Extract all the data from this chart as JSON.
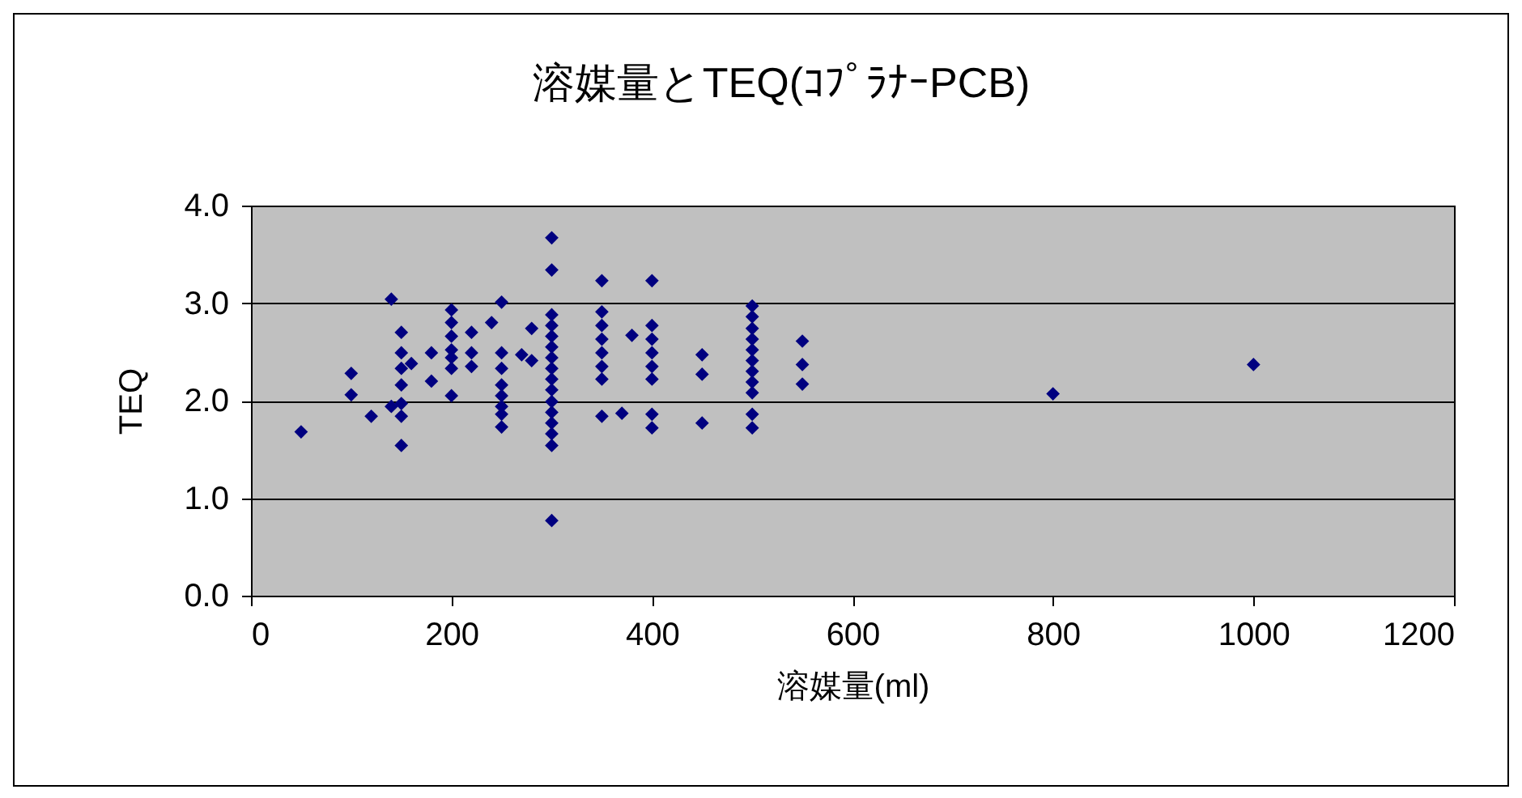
{
  "chart_data": {
    "type": "scatter",
    "title": "溶媒量とTEQ(ｺﾌﾟﾗﾅｰPCB)",
    "xlabel": "溶媒量(ml)",
    "ylabel": "TEQ",
    "x": [
      50,
      100,
      100,
      120,
      140,
      140,
      150,
      150,
      150,
      150,
      150,
      150,
      150,
      160,
      180,
      180,
      200,
      200,
      200,
      200,
      200,
      200,
      200,
      220,
      220,
      220,
      240,
      250,
      250,
      250,
      250,
      250,
      250,
      250,
      250,
      270,
      280,
      280,
      300,
      300,
      300,
      300,
      300,
      300,
      300,
      300,
      300,
      300,
      300,
      300,
      300,
      300,
      300,
      300,
      350,
      350,
      350,
      350,
      350,
      350,
      350,
      350,
      370,
      380,
      400,
      400,
      400,
      400,
      400,
      400,
      400,
      400,
      450,
      450,
      450,
      500,
      500,
      500,
      500,
      500,
      500,
      500,
      500,
      500,
      500,
      500,
      550,
      550,
      550,
      800,
      1000
    ],
    "values": [
      1.68,
      2.28,
      2.06,
      1.84,
      3.04,
      1.94,
      2.7,
      2.49,
      2.33,
      2.16,
      1.97,
      1.84,
      1.54,
      2.38,
      2.49,
      2.2,
      2.93,
      2.8,
      2.66,
      2.52,
      2.44,
      2.33,
      2.05,
      2.7,
      2.49,
      2.35,
      2.8,
      3.01,
      2.49,
      2.33,
      2.16,
      2.05,
      1.94,
      1.86,
      1.73,
      2.47,
      2.74,
      2.41,
      3.67,
      3.34,
      2.88,
      2.77,
      2.66,
      2.55,
      2.44,
      2.33,
      2.22,
      2.11,
      1.99,
      1.88,
      1.77,
      1.66,
      1.54,
      0.77,
      3.23,
      2.91,
      2.77,
      2.63,
      2.49,
      2.35,
      2.22,
      1.84,
      1.87,
      2.67,
      3.23,
      2.77,
      2.63,
      2.49,
      2.35,
      2.22,
      1.86,
      1.72,
      2.47,
      2.27,
      1.77,
      2.97,
      2.86,
      2.74,
      2.63,
      2.52,
      2.41,
      2.3,
      2.19,
      2.08,
      1.86,
      1.72,
      2.61,
      2.37,
      2.17,
      2.07,
      2.37
    ],
    "color": "#000080",
    "marker": "diamond",
    "xlim": [
      0,
      1200
    ],
    "xticks": [
      0,
      200,
      400,
      600,
      800,
      1000,
      1200
    ],
    "ylim": [
      0,
      4
    ],
    "yticks": [
      {
        "value": 0,
        "label": "0.0"
      },
      {
        "value": 1,
        "label": "1.0"
      },
      {
        "value": 2,
        "label": "2.0"
      },
      {
        "value": 3,
        "label": "3.0"
      },
      {
        "value": 4,
        "label": "4.0"
      }
    ],
    "grid": "y"
  }
}
